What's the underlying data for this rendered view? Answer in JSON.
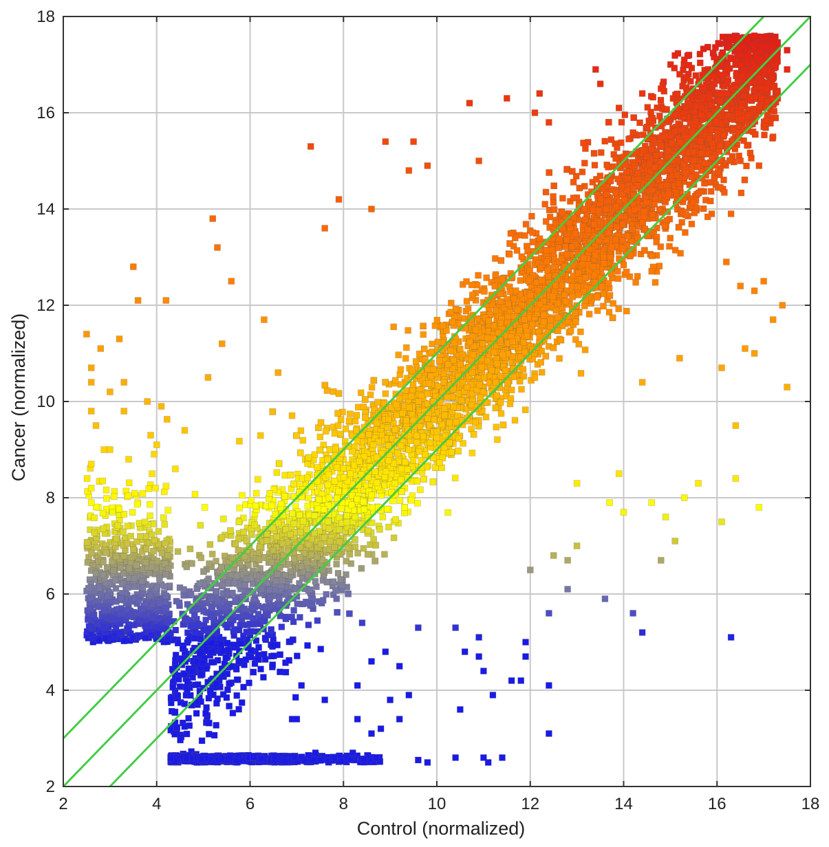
{
  "chart_data": {
    "type": "scatter",
    "title": "",
    "xlabel": "Control (normalized)",
    "ylabel": "Cancer (normalized)",
    "xlim": [
      2,
      18
    ],
    "ylim": [
      2,
      18
    ],
    "xticks": [
      2,
      4,
      6,
      8,
      10,
      12,
      14,
      16,
      18
    ],
    "yticks": [
      2,
      4,
      6,
      8,
      10,
      12,
      14,
      16,
      18
    ],
    "xtick_labels": [
      "2",
      "4",
      "6",
      "8",
      "10",
      "12",
      "14",
      "16",
      "18"
    ],
    "ytick_labels": [
      "2",
      "4",
      "6",
      "8",
      "10",
      "12",
      "14",
      "16",
      "18"
    ],
    "grid": true,
    "legend": "none",
    "marker": "square",
    "color_scale": {
      "by": "y",
      "stops": [
        {
          "y": 5.0,
          "color": "#1a1ae6"
        },
        {
          "y": 6.2,
          "color": "#8080a0"
        },
        {
          "y": 7.0,
          "color": "#c8c040"
        },
        {
          "y": 7.8,
          "color": "#ffff00"
        },
        {
          "y": 9.5,
          "color": "#ffc000"
        },
        {
          "y": 12.5,
          "color": "#ff8000"
        },
        {
          "y": 17.5,
          "color": "#e61e14"
        }
      ]
    },
    "reference_lines": [
      {
        "name": "y = x + 1",
        "slope": 1,
        "intercept": 1,
        "color": "#44cc44"
      },
      {
        "name": "y = x",
        "slope": 1,
        "intercept": 0,
        "color": "#44cc44"
      },
      {
        "name": "y = x - 1",
        "slope": 1,
        "intercept": -1,
        "color": "#44cc44"
      }
    ],
    "series": [
      {
        "points": [
          [
            2.5,
            11.4
          ],
          [
            2.6,
            10.7
          ],
          [
            2.6,
            10.4
          ],
          [
            2.6,
            9.8
          ],
          [
            2.7,
            9.5
          ],
          [
            2.6,
            8.7
          ],
          [
            2.6,
            8.2
          ],
          [
            2.6,
            7.9
          ],
          [
            2.8,
            11.1
          ],
          [
            3.0,
            10.2
          ],
          [
            3.2,
            11.3
          ],
          [
            3.3,
            10.4
          ],
          [
            3.5,
            12.8
          ],
          [
            3.6,
            12.1
          ],
          [
            3.3,
            9.8
          ],
          [
            3.0,
            9.0
          ],
          [
            3.4,
            8.8
          ],
          [
            3.8,
            10.0
          ],
          [
            4.1,
            9.9
          ],
          [
            4.0,
            9.1
          ],
          [
            3.9,
            8.5
          ],
          [
            4.4,
            8.6
          ],
          [
            4.2,
            12.1
          ],
          [
            4.6,
            9.4
          ],
          [
            5.1,
            10.5
          ],
          [
            5.2,
            13.8
          ],
          [
            5.3,
            13.2
          ],
          [
            5.4,
            11.2
          ],
          [
            5.6,
            12.5
          ],
          [
            6.3,
            11.7
          ],
          [
            6.6,
            10.6
          ],
          [
            7.3,
            15.3
          ],
          [
            7.9,
            14.2
          ],
          [
            7.6,
            13.6
          ],
          [
            8.6,
            14.0
          ],
          [
            8.9,
            15.4
          ],
          [
            9.5,
            15.4
          ],
          [
            9.4,
            14.8
          ],
          [
            9.8,
            14.9
          ],
          [
            10.7,
            16.2
          ],
          [
            10.9,
            15.0
          ],
          [
            11.5,
            16.3
          ],
          [
            12.2,
            16.4
          ],
          [
            12.1,
            16.0
          ],
          [
            12.4,
            15.8
          ],
          [
            13.4,
            16.9
          ],
          [
            13.5,
            16.6
          ],
          [
            13.9,
            16.1
          ],
          [
            14.4,
            16.4
          ],
          [
            14.8,
            16.5
          ],
          [
            15.2,
            16.8
          ],
          [
            15.3,
            17.1
          ],
          [
            16.1,
            17.2
          ],
          [
            16.8,
            17.6
          ],
          [
            17.2,
            17.5
          ],
          [
            17.5,
            17.3
          ],
          [
            17.5,
            16.9
          ],
          [
            17.2,
            15.5
          ],
          [
            17.3,
            16.3
          ],
          [
            16.5,
            15.0
          ],
          [
            16.9,
            14.9
          ],
          [
            16.3,
            13.9
          ],
          [
            16.2,
            12.9
          ],
          [
            16.5,
            12.4
          ],
          [
            16.8,
            12.3
          ],
          [
            17.0,
            12.5
          ],
          [
            17.4,
            12.0
          ],
          [
            17.2,
            11.7
          ],
          [
            16.8,
            11.0
          ],
          [
            16.6,
            11.1
          ],
          [
            17.5,
            10.3
          ],
          [
            16.4,
            9.5
          ],
          [
            16.1,
            10.7
          ],
          [
            15.2,
            10.9
          ],
          [
            14.4,
            10.4
          ],
          [
            16.4,
            8.4
          ],
          [
            16.1,
            7.5
          ],
          [
            16.9,
            7.8
          ],
          [
            15.6,
            8.3
          ],
          [
            15.3,
            8.0
          ],
          [
            14.6,
            7.9
          ],
          [
            14.9,
            7.6
          ],
          [
            15.1,
            7.1
          ],
          [
            13.7,
            7.9
          ],
          [
            14.0,
            7.7
          ],
          [
            13.9,
            8.5
          ],
          [
            13.0,
            8.3
          ],
          [
            12.8,
            6.7
          ],
          [
            12.5,
            6.8
          ],
          [
            14.8,
            6.7
          ],
          [
            13.0,
            7.0
          ],
          [
            13.6,
            5.9
          ],
          [
            14.2,
            5.6
          ],
          [
            14.4,
            5.2
          ],
          [
            16.3,
            5.1
          ],
          [
            12.8,
            6.1
          ],
          [
            12.0,
            6.5
          ],
          [
            12.4,
            5.6
          ],
          [
            11.4,
            2.6
          ],
          [
            11.1,
            2.5
          ],
          [
            11.0,
            2.6
          ],
          [
            10.4,
            2.6
          ],
          [
            9.8,
            2.5
          ],
          [
            9.6,
            2.55
          ],
          [
            10.5,
            3.6
          ],
          [
            11.2,
            3.9
          ],
          [
            11.6,
            4.2
          ],
          [
            11.8,
            4.2
          ],
          [
            12.4,
            4.1
          ],
          [
            12.4,
            3.1
          ],
          [
            11.0,
            4.4
          ],
          [
            10.9,
            4.7
          ],
          [
            10.6,
            4.8
          ],
          [
            10.9,
            5.1
          ],
          [
            11.9,
            4.7
          ],
          [
            11.9,
            5.0
          ],
          [
            10.4,
            5.3
          ],
          [
            9.6,
            5.3
          ],
          [
            8.9,
            4.8
          ],
          [
            8.6,
            4.6
          ],
          [
            8.4,
            5.4
          ],
          [
            9.2,
            4.5
          ],
          [
            9.0,
            3.8
          ],
          [
            8.8,
            3.2
          ],
          [
            8.6,
            3.1
          ],
          [
            8.3,
            3.4
          ],
          [
            8.7,
            2.6
          ],
          [
            8.2,
            2.7
          ],
          [
            7.8,
            2.6
          ],
          [
            7.4,
            2.7
          ],
          [
            7.6,
            3.8
          ],
          [
            6.9,
            3.4
          ],
          [
            7.0,
            3.4
          ],
          [
            7.1,
            4.1
          ],
          [
            8.3,
            4.1
          ],
          [
            9.4,
            3.9
          ],
          [
            9.2,
            3.4
          ]
        ]
      }
    ]
  }
}
